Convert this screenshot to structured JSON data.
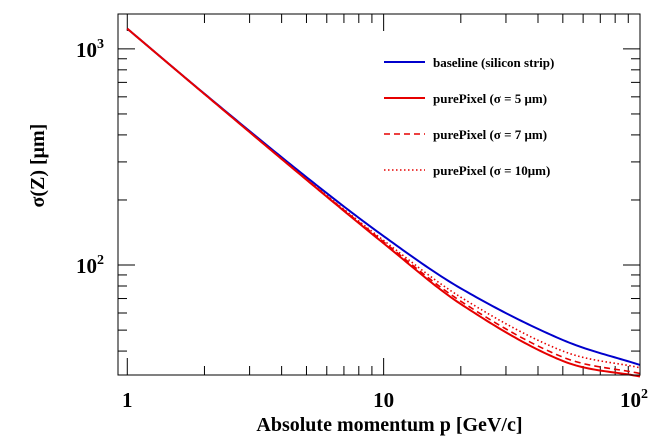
{
  "chart_data": {
    "type": "line",
    "title": "",
    "xlabel": "Absolute momentum p [GeV/c]",
    "ylabel": "σ(Z) [μm]",
    "xscale": "log",
    "yscale": "log",
    "xlim": [
      0.92,
      100
    ],
    "ylim": [
      31,
      1450
    ],
    "x_ticks": [
      {
        "value": 1,
        "label": "1"
      },
      {
        "value": 10,
        "label": "10"
      },
      {
        "value": 100,
        "label": "10",
        "sup": "2"
      }
    ],
    "y_ticks": [
      {
        "value": 100,
        "label": "10",
        "sup": "2"
      },
      {
        "value": 1000,
        "label": "10",
        "sup": "3"
      }
    ],
    "legend_position": "top-right",
    "grid": false,
    "series": [
      {
        "name": "baseline (silicon strip)",
        "color": "#0000cc",
        "style": "solid",
        "x": [
          1,
          2,
          5,
          10,
          20,
          50,
          100
        ],
        "y": [
          1240,
          620,
          255,
          136,
          78,
          45,
          34.5
        ]
      },
      {
        "name": "purePixel (σ = 5  μm)",
        "color": "#e60000",
        "style": "solid",
        "x": [
          1,
          2,
          5,
          10,
          20,
          50,
          100
        ],
        "y": [
          1240,
          618,
          248,
          126,
          66,
          36,
          30.5
        ]
      },
      {
        "name": "purePixel (σ = 7  μm)",
        "color": "#e60000",
        "style": "dashed",
        "x": [
          1,
          2,
          5,
          10,
          20,
          50,
          100
        ],
        "y": [
          1240,
          618,
          249,
          128,
          68,
          37.5,
          31.5
        ]
      },
      {
        "name": "purePixel (σ = 10μm)",
        "color": "#e60000",
        "style": "dotted",
        "x": [
          1,
          2,
          5,
          10,
          20,
          50,
          100
        ],
        "y": [
          1240,
          619,
          250,
          130,
          71,
          40,
          33.5
        ]
      }
    ]
  }
}
